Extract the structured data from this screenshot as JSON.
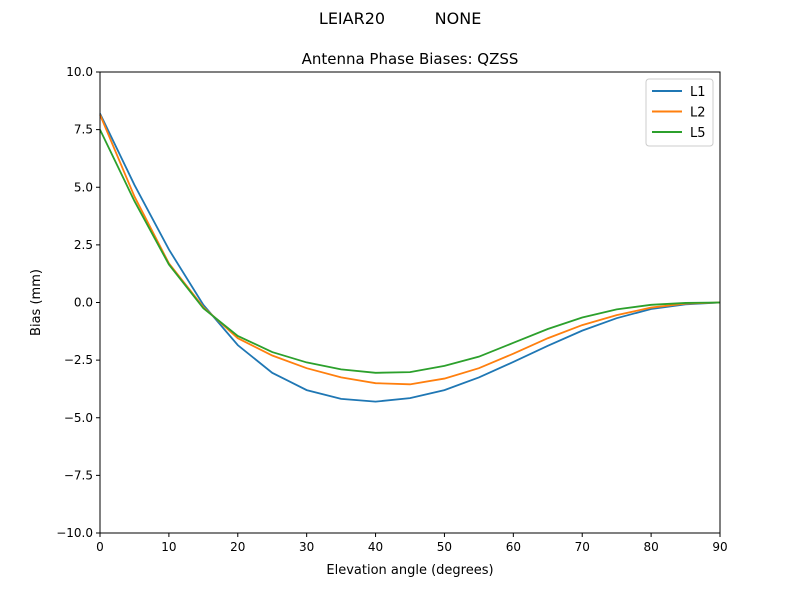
{
  "suptitle": {
    "antenna": "LEIAR20",
    "radome": "NONE"
  },
  "chart_data": {
    "type": "line",
    "title": "Antenna Phase Biases: QZSS",
    "xlabel": "Elevation angle (degrees)",
    "ylabel": "Bias (mm)",
    "xlim": [
      0,
      90
    ],
    "ylim": [
      -10,
      10
    ],
    "xticks": [
      "0",
      "10",
      "20",
      "30",
      "40",
      "50",
      "60",
      "70",
      "80",
      "90"
    ],
    "yticks": [
      "10.0",
      "7.5",
      "5.0",
      "2.5",
      "0.0",
      "−2.5",
      "−5.0",
      "−7.5",
      "−10.0"
    ],
    "grid": false,
    "legend_position": "top-right",
    "x": [
      0,
      5,
      10,
      15,
      20,
      25,
      30,
      35,
      40,
      45,
      50,
      55,
      60,
      65,
      70,
      75,
      80,
      85,
      90
    ],
    "series": [
      {
        "name": "L1",
        "color": "#1f77b4",
        "values": [
          8.2,
          5.1,
          2.3,
          -0.1,
          -1.85,
          -3.05,
          -3.8,
          -4.18,
          -4.3,
          -4.15,
          -3.8,
          -3.25,
          -2.58,
          -1.88,
          -1.22,
          -0.68,
          -0.28,
          -0.08,
          0
        ]
      },
      {
        "name": "L2",
        "color": "#ff7f0e",
        "values": [
          8.15,
          4.6,
          1.7,
          -0.2,
          -1.55,
          -2.3,
          -2.85,
          -3.25,
          -3.5,
          -3.55,
          -3.3,
          -2.85,
          -2.22,
          -1.55,
          -0.98,
          -0.55,
          -0.22,
          -0.05,
          0
        ]
      },
      {
        "name": "L5",
        "color": "#2ca02c",
        "values": [
          7.5,
          4.4,
          1.65,
          -0.25,
          -1.45,
          -2.15,
          -2.6,
          -2.9,
          -3.05,
          -3.02,
          -2.75,
          -2.35,
          -1.75,
          -1.15,
          -0.65,
          -0.3,
          -0.1,
          -0.02,
          0
        ]
      }
    ]
  }
}
